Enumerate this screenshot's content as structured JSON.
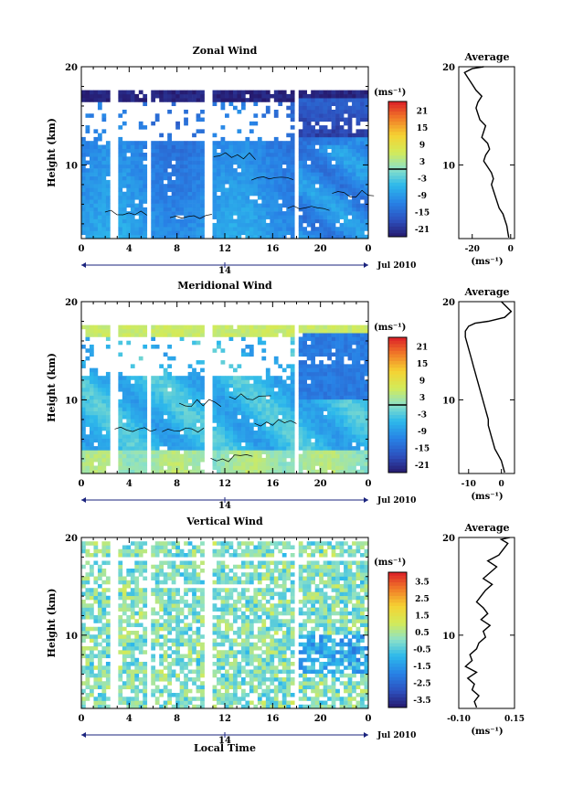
{
  "figure": {
    "xlabel": "Local Time",
    "date_label": "14",
    "month_label": "Jul 2010"
  },
  "chart_data": [
    {
      "type": "heatmap",
      "title": "Zonal Wind",
      "ylabel": "Height (km)",
      "x_ticks": [
        "0",
        "4",
        "8",
        "12",
        "16",
        "20",
        "0"
      ],
      "x_hours": [
        0,
        4,
        8,
        12,
        16,
        20,
        24
      ],
      "y_ticks": [
        10,
        20
      ],
      "ylim": [
        2.5,
        20
      ],
      "xlim": [
        0,
        24
      ],
      "colorbar": {
        "unit": "(ms⁻¹)",
        "ticks": [
          "21",
          "15",
          "9",
          "3",
          "-3",
          "-9",
          "-15",
          "-21"
        ],
        "vmin": -24,
        "vmax": 24
      },
      "gaps_hours": [
        2.4,
        3.0,
        5.4,
        5.7,
        10.4,
        10.8,
        17.8,
        18.2
      ],
      "profile": {
        "title": "Average",
        "unit": "(ms⁻¹)",
        "x_ticks": [
          "-20",
          "0"
        ],
        "x_tick_values": [
          -20,
          0
        ],
        "xlim": [
          -27,
          2
        ],
        "y_ticks": [
          10,
          20
        ],
        "x": [
          -1,
          -1.5,
          -2,
          -3,
          -4,
          -6,
          -7,
          -8,
          -9,
          -10,
          -9,
          -10,
          -12,
          -14,
          -13,
          -11,
          -12,
          -15,
          -14,
          -13,
          -16,
          -17,
          -18,
          -17,
          -15,
          -18,
          -20,
          -22,
          -24,
          -20,
          -14
        ],
        "y": [
          2.6,
          3.2,
          3.8,
          4.4,
          5.0,
          5.6,
          6.2,
          6.8,
          7.4,
          8.0,
          8.6,
          9.2,
          9.8,
          10.4,
          11.0,
          11.6,
          12.2,
          12.8,
          13.4,
          14.0,
          14.6,
          15.2,
          15.8,
          16.4,
          17.0,
          17.6,
          18.2,
          18.8,
          19.4,
          19.8,
          20.0
        ]
      }
    },
    {
      "type": "heatmap",
      "title": "Meridional Wind",
      "ylabel": "Height (km)",
      "x_ticks": [
        "0",
        "4",
        "8",
        "12",
        "16",
        "20",
        "0"
      ],
      "x_hours": [
        0,
        4,
        8,
        12,
        16,
        20,
        24
      ],
      "y_ticks": [
        10,
        20
      ],
      "ylim": [
        2.5,
        20
      ],
      "xlim": [
        0,
        24
      ],
      "colorbar": {
        "unit": "(ms⁻¹)",
        "ticks": [
          "21",
          "15",
          "9",
          "3",
          "-3",
          "-9",
          "-15",
          "-21"
        ],
        "vmin": -24,
        "vmax": 24
      },
      "gaps_hours": [
        2.4,
        3.0,
        5.4,
        5.7,
        10.4,
        10.8,
        17.8,
        18.2
      ],
      "profile": {
        "title": "Average",
        "unit": "(ms⁻¹)",
        "x_ticks": [
          "-10",
          "0"
        ],
        "x_tick_values": [
          -10,
          0
        ],
        "xlim": [
          -13,
          4
        ],
        "y_ticks": [
          10,
          20
        ],
        "x": [
          1,
          0.5,
          0,
          -1,
          -2,
          -2.5,
          -3,
          -3.5,
          -4,
          -4,
          -4.5,
          -5,
          -5.5,
          -6,
          -6.5,
          -7,
          -7.5,
          -8,
          -8.5,
          -9,
          -9.5,
          -10,
          -10.5,
          -11,
          -11,
          -10,
          -8,
          -4,
          1,
          3,
          0
        ],
        "y": [
          2.6,
          3.2,
          3.8,
          4.4,
          5.0,
          5.6,
          6.2,
          6.8,
          7.4,
          8.0,
          8.6,
          9.2,
          9.8,
          10.4,
          11.0,
          11.6,
          12.2,
          12.8,
          13.4,
          14.0,
          14.6,
          15.2,
          15.8,
          16.4,
          17.0,
          17.5,
          17.8,
          18.0,
          18.4,
          19.0,
          20.0
        ]
      }
    },
    {
      "type": "heatmap",
      "title": "Vertical Wind",
      "ylabel": "Height (km)",
      "x_ticks": [
        "0",
        "4",
        "8",
        "12",
        "16",
        "20",
        "0"
      ],
      "x_hours": [
        0,
        4,
        8,
        12,
        16,
        20,
        24
      ],
      "y_ticks": [
        10,
        20
      ],
      "ylim": [
        2.5,
        20
      ],
      "xlim": [
        0,
        24
      ],
      "colorbar": {
        "unit": "(ms⁻¹)",
        "ticks": [
          "3.5",
          "2.5",
          "1.5",
          "0.5",
          "-0.5",
          "-1.5",
          "-2.5",
          "-3.5"
        ],
        "vmin": -4,
        "vmax": 4
      },
      "gaps_hours": [
        2.4,
        3.0,
        5.4,
        5.7,
        10.4,
        10.8,
        17.8,
        18.2
      ],
      "profile": {
        "title": "Average",
        "unit": "(ms⁻¹)",
        "x_ticks": [
          "-0.10",
          "0.15"
        ],
        "x_tick_values": [
          -0.1,
          0.15
        ],
        "xlim": [
          -0.1,
          0.15
        ],
        "y_ticks": [
          10,
          20
        ],
        "x": [
          -0.02,
          -0.03,
          -0.01,
          -0.04,
          -0.03,
          -0.06,
          -0.02,
          -0.07,
          -0.04,
          -0.05,
          -0.02,
          -0.01,
          0.02,
          0.01,
          0.04,
          0.0,
          0.03,
          0.01,
          -0.02,
          0.0,
          0.02,
          0.05,
          0.01,
          0.04,
          0.07,
          0.03,
          0.08,
          0.1,
          0.12,
          0.09,
          0.13
        ],
        "y": [
          2.6,
          3.2,
          3.8,
          4.4,
          5.0,
          5.6,
          6.2,
          6.8,
          7.4,
          8.0,
          8.6,
          9.2,
          9.8,
          10.4,
          11.0,
          11.6,
          12.2,
          12.8,
          13.4,
          14.0,
          14.6,
          15.2,
          15.8,
          16.4,
          17.0,
          17.6,
          18.2,
          18.8,
          19.4,
          19.8,
          20.0
        ]
      }
    }
  ]
}
